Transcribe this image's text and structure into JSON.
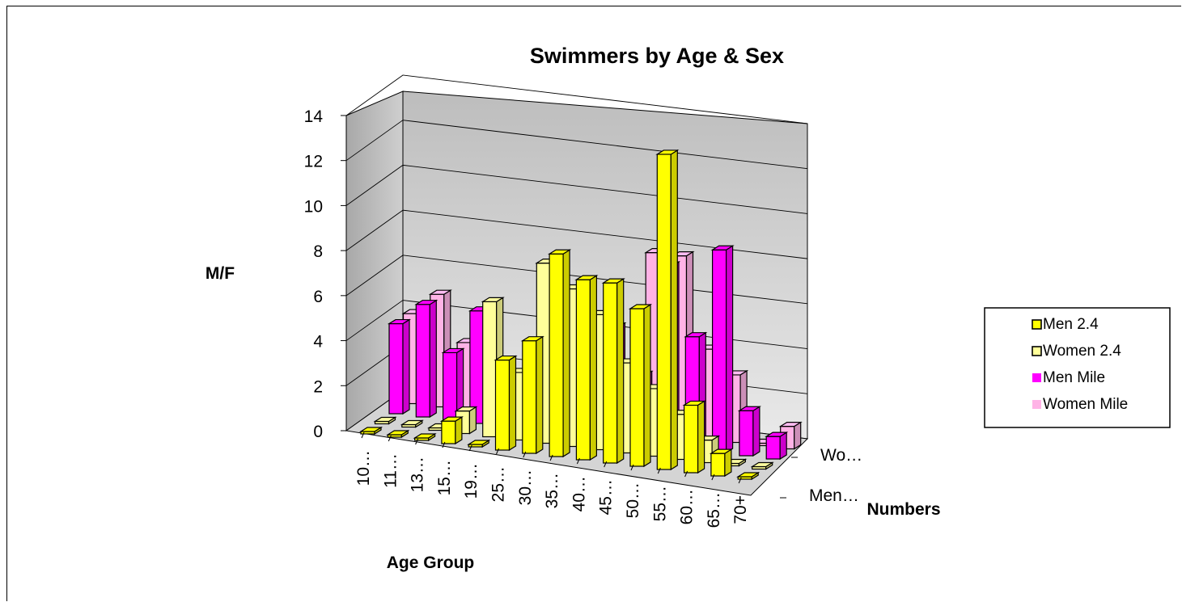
{
  "chart_data": {
    "type": "bar",
    "subtype": "3d-clustered-depth",
    "title": "Swimmers by Age & Sex",
    "ylabel": "M/F",
    "xlabel": "Age Group",
    "zlabel": "Numbers",
    "ylim": [
      0,
      14
    ],
    "yticks": [
      "0",
      "2",
      "4",
      "6",
      "8",
      "10",
      "12",
      "14"
    ],
    "categories": [
      "10…",
      "11…",
      "13…",
      "15…",
      "19…",
      "25…",
      "30…",
      "35…",
      "40…",
      "45…",
      "50…",
      "55…",
      "60…",
      "65…",
      "70+"
    ],
    "depth_labels": [
      "Men…",
      "Wo…"
    ],
    "series": [
      {
        "name": "Men 2.4",
        "color": "#FFFF00",
        "values": [
          0,
          0,
          0,
          1,
          0,
          4,
          5,
          9,
          8,
          8,
          7,
          14,
          3,
          1,
          0
        ]
      },
      {
        "name": "Women 2.4",
        "color": "#FFFF99",
        "values": [
          0,
          0,
          0,
          1,
          6,
          3,
          8,
          7,
          6,
          4,
          3,
          2,
          1,
          0,
          0
        ]
      },
      {
        "name": "Men Mile",
        "color": "#FF00FF",
        "values": [
          4,
          5,
          3,
          5,
          0,
          0,
          0,
          0,
          5,
          3,
          8,
          5,
          9,
          2,
          1
        ]
      },
      {
        "name": "Women Mile",
        "color": "#FFB3E6",
        "values": [
          4,
          5,
          3,
          0,
          0,
          0,
          0,
          0,
          0,
          8,
          8,
          4,
          3,
          0,
          1
        ]
      }
    ],
    "legend_position": "right",
    "grid": true
  }
}
